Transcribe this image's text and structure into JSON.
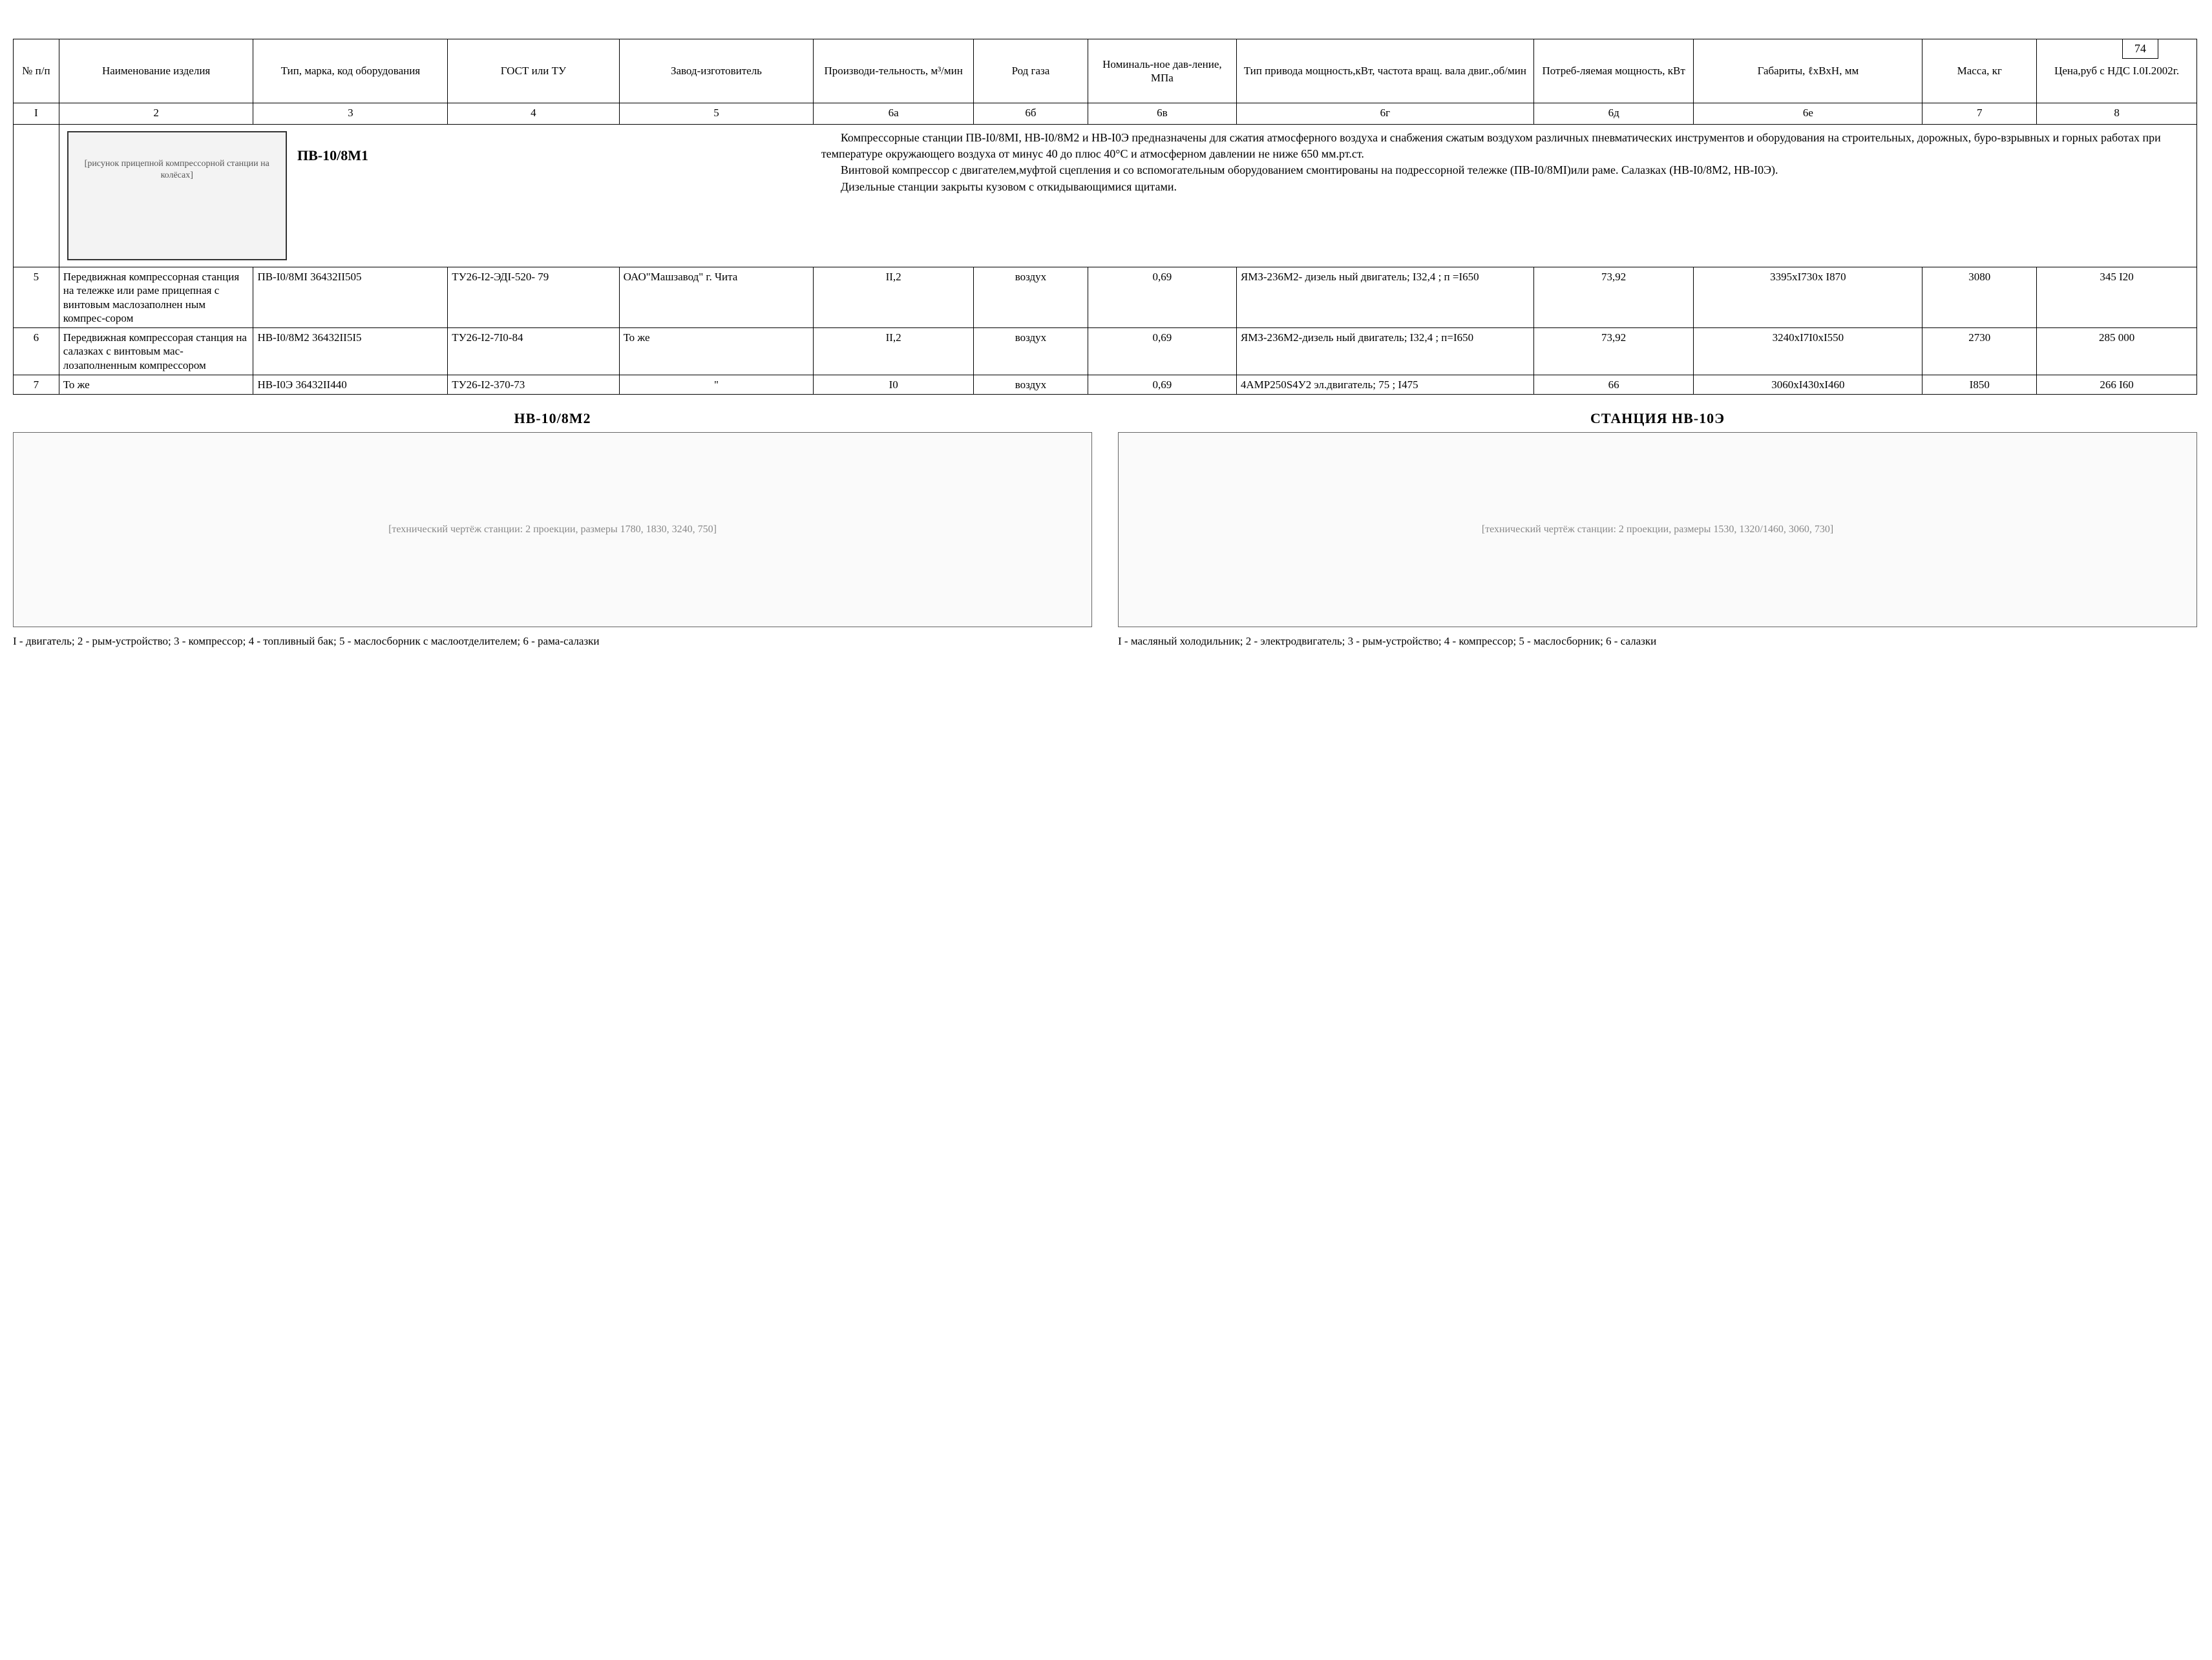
{
  "page_number": "74",
  "headers": {
    "c1": "№ п/п",
    "c2": "Наименование изделия",
    "c3": "Тип, марка, код оборудования",
    "c4": "ГОСТ или ТУ",
    "c5": "Завод-изготовитель",
    "c6a": "Производи-тельность, м³/мин",
    "c6b": "Род газа",
    "c6c": "Номиналь-ное дав-ление, МПа",
    "c6d": "Тип привода мощность,кВт, частота вращ. вала двиг.,об/мин",
    "c6e": "Потреб-ляемая мощность, кВт",
    "c6f": "Габариты, ℓхВхН, мм",
    "c7": "Масса, кг",
    "c8": "Цена,руб с НДС І.0І.2002г."
  },
  "col_nums": {
    "c1": "І",
    "c2": "2",
    "c3": "3",
    "c4": "4",
    "c5": "5",
    "c6a": "6а",
    "c6b": "6б",
    "c6c": "6в",
    "c6d": "6г",
    "c6e": "6д",
    "c6f": "6е",
    "c7": "7",
    "c8": "8"
  },
  "intro_label": "ПВ-10/8М1",
  "intro_text_1": "Компрессорные станции ПВ-І0/8МІ, НВ-І0/8М2 и НВ-І0Э предназначены  для  сжатия атмосферного воздуха и снабжения сжатым воздухом различных пневматических инструментов и оборудования на строительных, дорожных, буро-взрывных и горных работах при температуре окружающего воздуха от минус 40 до плюс 40°С и атмосферном давлении  не ниже 650 мм.рт.ст.",
  "intro_text_2": "Винтовой компрессор с двигателем,муфтой сцепления и со вспомогательным оборудованием смонтированы на подрессорной тележке (ПВ-І0/8МІ)или раме. Салазках (НВ-І0/8М2,  НВ-І0Э).",
  "intro_text_3": "Дизельные станции закрыты кузовом с откидывающимися щитами.",
  "rows": [
    {
      "n": "5",
      "name": "Передвижная компрессорная станция на тележке или раме прицепная с винтовым маслозаполнен ным компрес-сором",
      "type": "ПВ-І0/8МІ 36432ІІ505",
      "gost": "ТУ26-І2-ЭДІ-520- 79",
      "factory": "ОАО\"Машзавод\" г. Чита",
      "perf": "ІІ,2",
      "gas": "воздух",
      "press": "0,69",
      "drive": "ЯМЗ-236М2- дизель ный двигатель; І32,4 ; п =І650",
      "power": "73,92",
      "dims": "3395хІ730х І870",
      "mass": "3080",
      "price": "345 І20"
    },
    {
      "n": "6",
      "name": "Передвижная компрессорая станция на салазках с винтовым мас-лозаполненным компрессором",
      "type": "НВ-І0/8М2 36432ІІ5І5",
      "gost": "ТУ26-І2-7І0-84",
      "factory": "То же",
      "perf": "ІІ,2",
      "gas": "воздух",
      "press": "0,69",
      "drive": "ЯМЗ-236М2-дизель ный двигатель; І32,4 ; п=І650",
      "power": "73,92",
      "dims": "3240хІ7І0хІ550",
      "mass": "2730",
      "price": "285 000"
    },
    {
      "n": "7",
      "name": "То же",
      "type": "НВ-І0Э 36432ІІ440",
      "gost": "ТУ26-І2-370-73",
      "factory": "\"",
      "perf": "І0",
      "gas": "воздух",
      "press": "0,69",
      "drive": "4АМР250S4У2 эл.двигатель; 75 ; І475",
      "power": "66",
      "dims": "3060хІ430хІ460",
      "mass": "І850",
      "price": "266 І60"
    }
  ],
  "fig1": {
    "title": "НВ-10/8М2",
    "placeholder": "[технический чертёж станции: 2 проекции, размеры 1780, 1830, 3240, 750]",
    "caption": "І - двигатель; 2 - рым-устройство; 3 - компрессор; 4 - топливный бак; 5 - маслосборник с маслоотделителем; 6 - рама-салазки"
  },
  "fig2": {
    "title": "СТАНЦИЯ  НВ-10Э",
    "placeholder": "[технический чертёж станции: 2 проекции, размеры 1530, 1320/1460, 3060, 730]",
    "caption": "І - масляный холодильник; 2 - электродвигатель; 3 - рым-устройство; 4 - компрессор; 5 - маслосборник; 6 - салазки"
  },
  "truck_placeholder": "[рисунок прицепной компрессорной станции на колёсах]"
}
